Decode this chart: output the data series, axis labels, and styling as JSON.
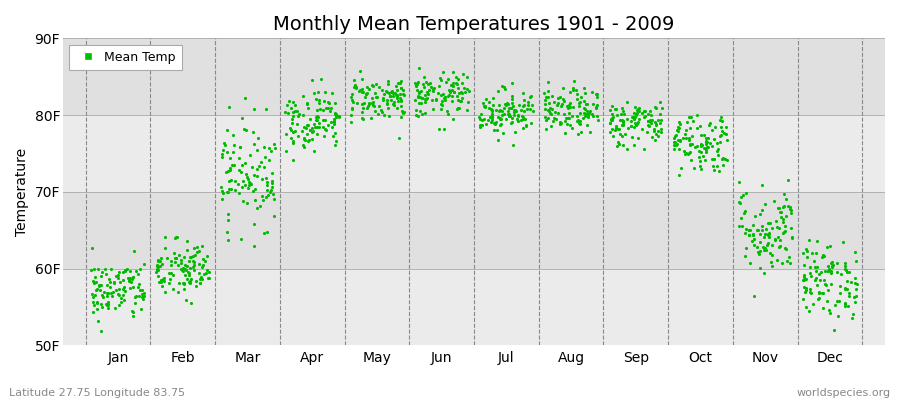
{
  "title": "Monthly Mean Temperatures 1901 - 2009",
  "ylabel": "Temperature",
  "xlabel_labels": [
    "Jan",
    "Feb",
    "Mar",
    "Apr",
    "May",
    "Jun",
    "Jul",
    "Aug",
    "Sep",
    "Oct",
    "Nov",
    "Dec"
  ],
  "ytick_labels": [
    "50F",
    "60F",
    "70F",
    "80F",
    "90F"
  ],
  "ytick_values": [
    50,
    60,
    70,
    80,
    90
  ],
  "ylim": [
    50,
    90
  ],
  "legend_label": "Mean Temp",
  "dot_color": "#00bb00",
  "bg_light": "#ebebeb",
  "bg_dark": "#e0e0e0",
  "footer_left": "Latitude 27.75 Longitude 83.75",
  "footer_right": "worldspecies.org",
  "monthly_means": [
    57.2,
    59.8,
    72.5,
    79.5,
    82.2,
    82.5,
    80.5,
    80.5,
    79.0,
    76.5,
    65.0,
    58.5
  ],
  "monthly_std": [
    2.0,
    2.0,
    3.5,
    2.0,
    1.5,
    1.5,
    1.5,
    1.5,
    1.5,
    2.0,
    3.0,
    2.5
  ],
  "n_years": 109,
  "seed": 42,
  "title_fontsize": 14,
  "axis_fontsize": 10,
  "footer_fontsize": 8
}
